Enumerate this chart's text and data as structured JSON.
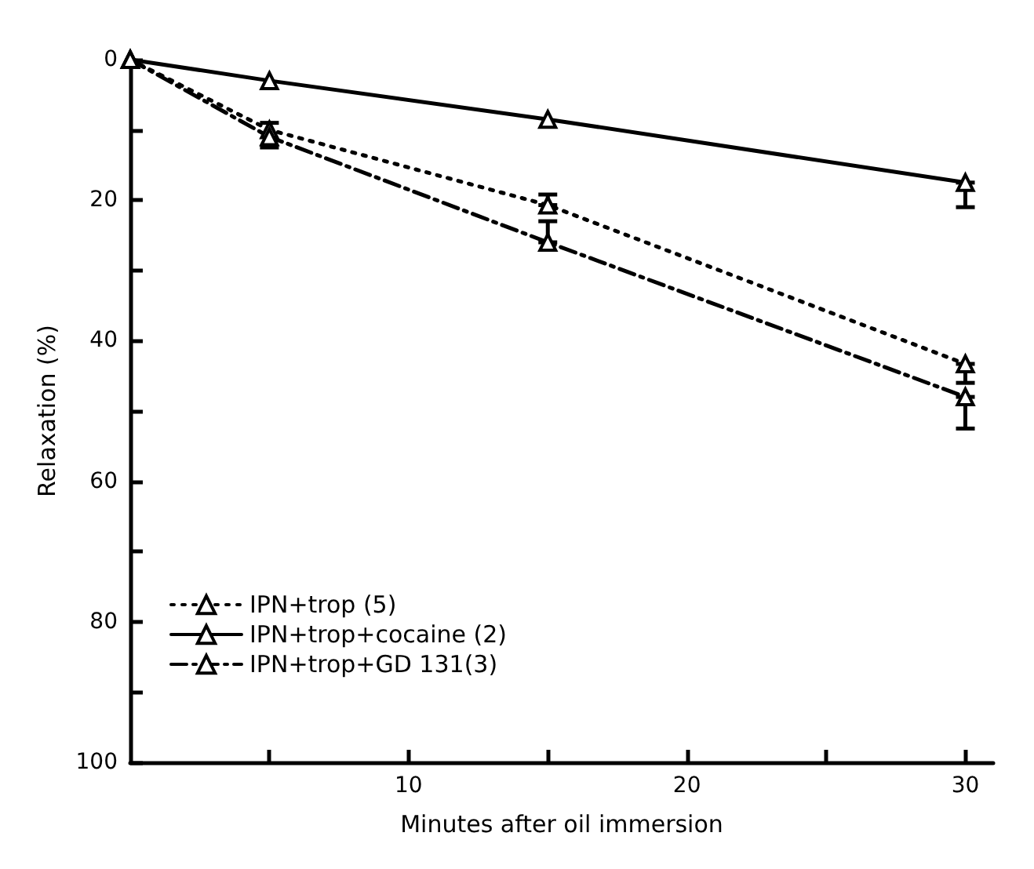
{
  "chart_data": {
    "type": "line",
    "xlabel": "Minutes after oil immersion",
    "ylabel": "Relaxation (%)",
    "xlim": [
      0,
      31
    ],
    "xticks": [
      {
        "value": 5,
        "label": null
      },
      10,
      {
        "value": 15,
        "label": null
      },
      20,
      {
        "value": 25,
        "label": null
      },
      30
    ],
    "ylim": [
      100,
      0
    ],
    "yticks": [
      0,
      {
        "value": 10,
        "label": null
      },
      20,
      {
        "value": 30,
        "label": null
      },
      40,
      {
        "value": 50,
        "label": null
      },
      60,
      {
        "value": 70,
        "label": null
      },
      80,
      {
        "value": 90,
        "label": null
      },
      100
    ],
    "grid": false,
    "legend": "bottom left",
    "marker": "triangle",
    "series": [
      {
        "name": "IPN+trop (5)",
        "color": "#000000",
        "line_style": "dotted",
        "x": [
          0,
          5,
          15,
          30
        ],
        "values": [
          0,
          10,
          20.7,
          43.3
        ],
        "errors": [
          null,
          [
            9,
            12.5
          ],
          [
            19.2,
            20.7
          ],
          [
            43.3,
            46
          ]
        ]
      },
      {
        "name": "IPN+trop+cocaine (2)",
        "color": "#000000",
        "line_style": "solid",
        "x": [
          0,
          5,
          15,
          30
        ],
        "values": [
          0,
          3,
          8.5,
          17.5
        ],
        "errors": [
          null,
          null,
          null,
          [
            17.5,
            21
          ]
        ]
      },
      {
        "name": "IPN+trop+GD 131(3)",
        "color": "#000000",
        "line_style": "dashed",
        "x": [
          0,
          5,
          15,
          30
        ],
        "values": [
          0,
          11,
          26,
          48
        ],
        "errors": [
          null,
          null,
          [
            23,
            26
          ],
          [
            48,
            52.5
          ]
        ]
      }
    ]
  }
}
